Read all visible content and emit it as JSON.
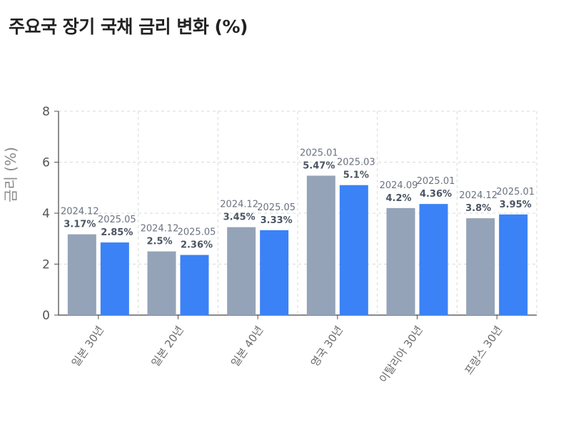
{
  "chart_data": {
    "type": "bar",
    "title": "주요국 장기 국채 금리 변화 (%)",
    "ylabel": "금리 (%)",
    "xlabel": "",
    "ylim": [
      0,
      8
    ],
    "yticks": [
      "0",
      "2",
      "4",
      "6",
      "8"
    ],
    "grid": true,
    "colors": {
      "before": "#94a3b8",
      "after": "#3b82f6"
    },
    "categories": [
      "일본 30년",
      "일본 20년",
      "일본 40년",
      "영국 30년",
      "이탈리아 30년",
      "프랑스 30년"
    ],
    "groups": [
      {
        "bars": [
          {
            "date": "2024.12",
            "value": 3.17,
            "label": "3.17%"
          },
          {
            "date": "2025.05",
            "value": 2.85,
            "label": "2.85%"
          }
        ]
      },
      {
        "bars": [
          {
            "date": "2024.12",
            "value": 2.5,
            "label": "2.5%"
          },
          {
            "date": "2025.05",
            "value": 2.36,
            "label": "2.36%"
          }
        ]
      },
      {
        "bars": [
          {
            "date": "2024.12",
            "value": 3.45,
            "label": "3.45%"
          },
          {
            "date": "2025.05",
            "value": 3.33,
            "label": "3.33%"
          }
        ]
      },
      {
        "bars": [
          {
            "date": "2025.01",
            "value": 5.47,
            "label": "5.47%"
          },
          {
            "date": "2025.03",
            "value": 5.1,
            "label": "5.1%"
          }
        ]
      },
      {
        "bars": [
          {
            "date": "2024.09",
            "value": 4.2,
            "label": "4.2%"
          },
          {
            "date": "2025.01",
            "value": 4.36,
            "label": "4.36%"
          }
        ]
      },
      {
        "bars": [
          {
            "date": "2024.12",
            "value": 3.8,
            "label": "3.8%"
          },
          {
            "date": "2025.01",
            "value": 3.95,
            "label": "3.95%"
          }
        ]
      }
    ]
  }
}
